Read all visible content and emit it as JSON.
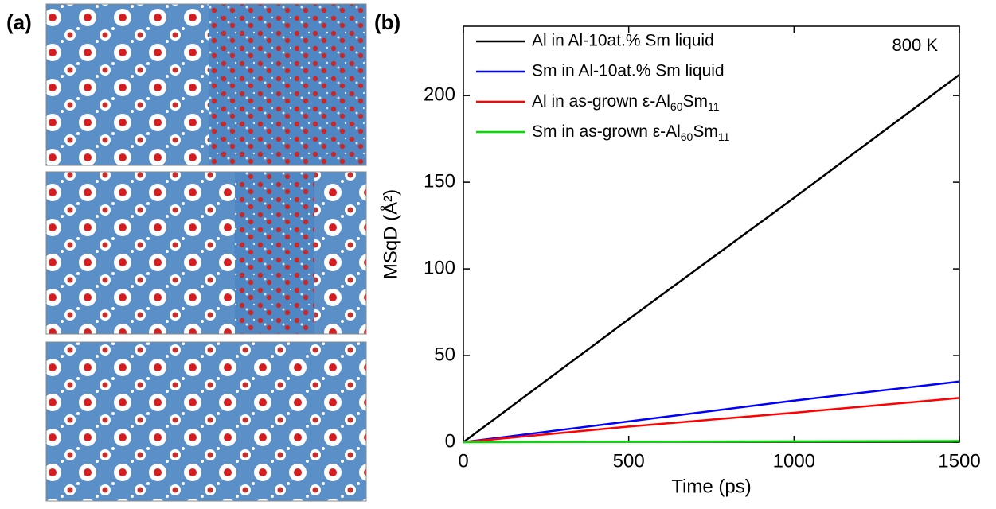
{
  "panel_labels": [
    "(a)",
    "(b)"
  ],
  "chart_data": {
    "type": "line",
    "xlabel": "Time (ps)",
    "ylabel": "MSqD (Å²)",
    "annotation": "800 K",
    "x": [
      0,
      500,
      1000,
      1500
    ],
    "series": [
      {
        "name": "Al in Al-10at.% Sm liquid",
        "color": "#000000",
        "values": [
          0,
          71,
          141,
          212
        ]
      },
      {
        "name": "Sm in Al-10at.% Sm liquid",
        "color": "#0000ff",
        "values": [
          0,
          12,
          24,
          35
        ]
      },
      {
        "name": "Al in as-grown ε-Al60Sm11",
        "color": "#ff0000",
        "values": [
          0,
          9,
          17,
          25.5
        ]
      },
      {
        "name": "Sm in as-grown ε-Al60Sm11",
        "color": "#00e000",
        "values": [
          0,
          0.3,
          0.5,
          0.7
        ]
      }
    ],
    "xlim": [
      0,
      1500
    ],
    "xticks": [
      0,
      500,
      1000,
      1500
    ],
    "ylim": [
      0,
      240
    ],
    "yticks": [
      0,
      50,
      100,
      150,
      200
    ],
    "legend": "upper left"
  }
}
